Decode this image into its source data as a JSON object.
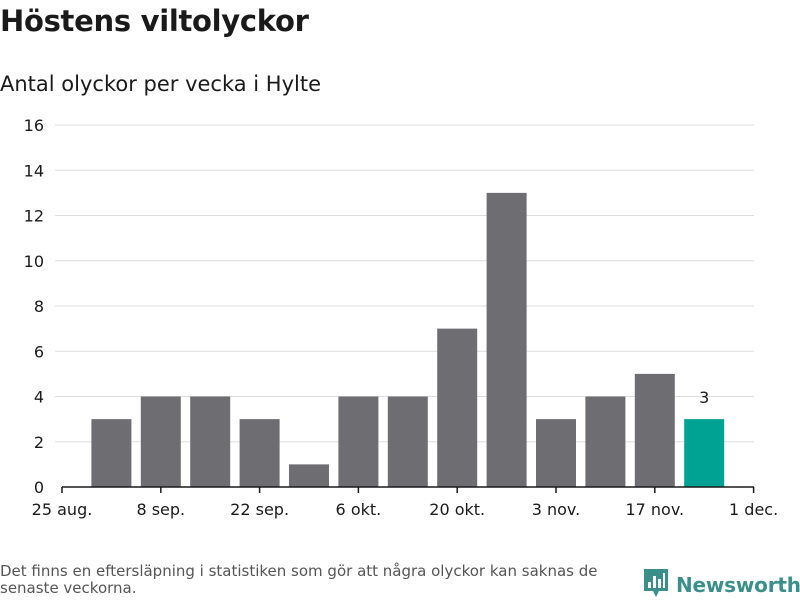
{
  "header": {
    "title": "Höstens viltolyckor",
    "subtitle": "Antal olyckor per vecka i Hylte"
  },
  "footer": {
    "note": "Det finns en eftersläpning i statistiken som gör att några olyckor kan saknas de senaste veckorna.",
    "brand": "Newsworthy"
  },
  "colors": {
    "bar": "#6e6d72",
    "highlight": "#00a294",
    "grid": "#dddddd",
    "axis": "#1a1a1a",
    "brand": "#3a8f8a"
  },
  "chart_data": {
    "type": "bar",
    "title": "Höstens viltolyckor",
    "subtitle": "Antal olyckor per vecka i Hylte",
    "x_tick_labels": [
      "25 aug.",
      "8 sep.",
      "22 sep.",
      "6 okt.",
      "20 okt.",
      "3 nov.",
      "17 nov.",
      "1 dec."
    ],
    "values": [
      3,
      4,
      4,
      3,
      1,
      4,
      4,
      7,
      13,
      3,
      4,
      5,
      3
    ],
    "highlight_index": 12,
    "highlight_label": "3",
    "y_ticks": [
      "0",
      "2",
      "4",
      "6",
      "8",
      "10",
      "12",
      "14",
      "16"
    ],
    "ylim": [
      0,
      16
    ],
    "grid": true,
    "xlabel": "",
    "ylabel": ""
  }
}
